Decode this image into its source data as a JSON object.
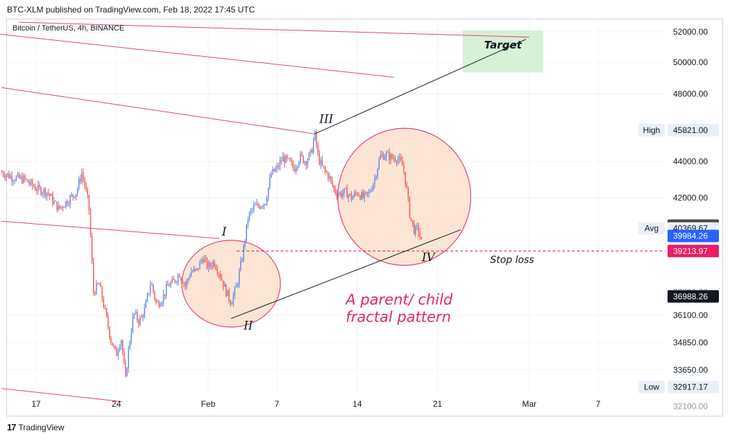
{
  "header": {
    "published": "BTC-XLM published on TradingView.com, Feb 18, 2022 17:45 UTC"
  },
  "instrument": "Bitcoin / TetherUS, 4h, BINANCE",
  "footer": {
    "brand": "TradingView",
    "logo": "17"
  },
  "colors": {
    "up": "#5b86e5",
    "down": "#ef5350",
    "channel": "#e0427a",
    "wave": "#131722",
    "target_fill": "#d8f0d5",
    "circle_fill": "#fbe0cc",
    "circle_stroke": "#e0427a",
    "annotation": "#e0276f"
  },
  "chart_data": {
    "type": "candlestick",
    "symbol": "Bitcoin / TetherUS",
    "interval": "4h",
    "exchange": "BINANCE",
    "x_ticks": [
      {
        "label": "17",
        "day": 17
      },
      {
        "label": "Feb",
        "day": 32
      },
      {
        "label": "24",
        "day": 24
      },
      {
        "label": "7",
        "day": 38
      },
      {
        "label": "14",
        "day": 45
      },
      {
        "label": "21",
        "day": 52
      },
      {
        "label": "Mar",
        "day": 60
      },
      {
        "label": "7",
        "day": 66
      }
    ],
    "y_ticks": [
      52000,
      50000,
      48000,
      44000,
      42000,
      36100,
      34850,
      33650
    ],
    "y_tick_labels": [
      "52000.00",
      "50000.00",
      "48000.00",
      "44000.00",
      "42000.00",
      "36100.00",
      "34850.00",
      "33650.00"
    ],
    "y_partial_labels": [
      {
        "text": "37200.00",
        "value": 37200
      },
      {
        "text": "32100.00",
        "value": 32100
      }
    ],
    "price_tags": [
      {
        "label": "High",
        "value": 45821.0,
        "text": "45821.00",
        "style": "light"
      },
      {
        "label": "",
        "value": 40515.7,
        "text": "40515.70",
        "style": "dark"
      },
      {
        "label": "Avg",
        "value": 40369.67,
        "text": "40369.67",
        "style": "light"
      },
      {
        "label": "",
        "value": 39984.26,
        "text": "39984.26",
        "style": "blue"
      },
      {
        "label": "",
        "value": 39213.97,
        "text": "39213.97",
        "style": "red"
      },
      {
        "label": "",
        "value": 36988.26,
        "text": "36988.26",
        "style": "black"
      },
      {
        "label": "Low",
        "value": 32917.17,
        "text": "32917.17",
        "style": "light"
      }
    ],
    "candles_path": [
      [
        14,
        43400
      ],
      [
        15,
        43100
      ],
      [
        16,
        43000
      ],
      [
        17,
        42500
      ],
      [
        18,
        42300
      ],
      [
        18.5,
        41800
      ],
      [
        19,
        41400
      ],
      [
        20,
        42000
      ],
      [
        20.5,
        42300
      ],
      [
        21,
        43400
      ],
      [
        21.6,
        41600
      ],
      [
        22,
        37200
      ],
      [
        22.5,
        37600
      ],
      [
        23,
        36300
      ],
      [
        23.5,
        35000
      ],
      [
        24,
        34300
      ],
      [
        24.4,
        35100
      ],
      [
        24.8,
        33200
      ],
      [
        25,
        34300
      ],
      [
        25.5,
        36200
      ],
      [
        26,
        35800
      ],
      [
        26.5,
        36400
      ],
      [
        27,
        37700
      ],
      [
        27.5,
        36600
      ],
      [
        28,
        36900
      ],
      [
        28.5,
        37500
      ],
      [
        29,
        37700
      ],
      [
        29.5,
        38100
      ],
      [
        30,
        37500
      ],
      [
        30.5,
        38200
      ],
      [
        31,
        38200
      ],
      [
        31.5,
        38900
      ],
      [
        32,
        38400
      ],
      [
        32.5,
        38700
      ],
      [
        33,
        38100
      ],
      [
        33.5,
        37300
      ],
      [
        34,
        36700
      ],
      [
        34.5,
        37500
      ],
      [
        35,
        39000
      ],
      [
        35.5,
        41000
      ],
      [
        36,
        41500
      ],
      [
        36.5,
        41600
      ],
      [
        37,
        41800
      ],
      [
        37.5,
        43300
      ],
      [
        38,
        43600
      ],
      [
        38.5,
        44200
      ],
      [
        39,
        44000
      ],
      [
        39.5,
        43600
      ],
      [
        40,
        44300
      ],
      [
        40.5,
        44000
      ],
      [
        41,
        44500
      ],
      [
        41.3,
        45600
      ],
      [
        41.6,
        44200
      ],
      [
        42,
        43600
      ],
      [
        42.5,
        43200
      ],
      [
        43,
        42400
      ],
      [
        43.5,
        42200
      ],
      [
        44,
        42300
      ],
      [
        44.5,
        42000
      ],
      [
        45,
        42300
      ],
      [
        45.5,
        42000
      ],
      [
        46,
        42200
      ],
      [
        46.5,
        43000
      ],
      [
        47,
        44300
      ],
      [
        47.5,
        44400
      ],
      [
        48,
        44200
      ],
      [
        48.5,
        44200
      ],
      [
        49,
        43700
      ],
      [
        49.3,
        42500
      ],
      [
        49.6,
        41000
      ],
      [
        50,
        40200
      ],
      [
        50.3,
        40400
      ],
      [
        50.6,
        39600
      ]
    ],
    "channel_lines": [
      {
        "from": [
          11.4,
          52050
        ],
        "to": [
          48.2,
          49050
        ]
      },
      {
        "from": [
          15.5,
          52650
        ],
        "to": [
          60.0,
          51650
        ]
      },
      {
        "from": [
          14.0,
          48400
        ],
        "to": [
          41.3,
          45600
        ]
      },
      {
        "from": [
          14.0,
          40750
        ],
        "to": [
          33.0,
          39850
        ]
      },
      {
        "from": [
          14.0,
          32850
        ],
        "to": [
          24.5,
          32300
        ]
      }
    ],
    "wave_lines": [
      {
        "from": [
          41.3,
          45600
        ],
        "to": [
          59.7,
          51500
        ]
      },
      {
        "from": [
          34.0,
          35950
        ],
        "to": [
          54.0,
          40300
        ]
      }
    ],
    "stop_loss": {
      "value": 39213.97,
      "from_day": 34.5,
      "label": "Stop loss",
      "label_day": 58.5
    },
    "target": {
      "label": "Target",
      "day_from": 54.2,
      "day_to": 61.2,
      "high": 52100,
      "low": 49350
    },
    "circles": [
      {
        "cx": 34.0,
        "cy": 37600,
        "rx": 4.3,
        "ry": 2100
      },
      {
        "cx": 49.1,
        "cy": 42050,
        "rx": 5.8,
        "ry": 3700
      }
    ],
    "wave_labels": [
      {
        "text": "I",
        "day": 33.4,
        "value": 40000
      },
      {
        "text": "II",
        "day": 35.5,
        "value": 35450
      },
      {
        "text": "III",
        "day": 42.3,
        "value": 46250
      },
      {
        "text": "IV",
        "day": 51.2,
        "value": 38700
      }
    ],
    "annotations": [
      {
        "text": "A parent/ child",
        "day": 44.0,
        "value": 36600
      },
      {
        "text": "fractal pattern",
        "day": 44.0,
        "value": 35800
      }
    ]
  }
}
